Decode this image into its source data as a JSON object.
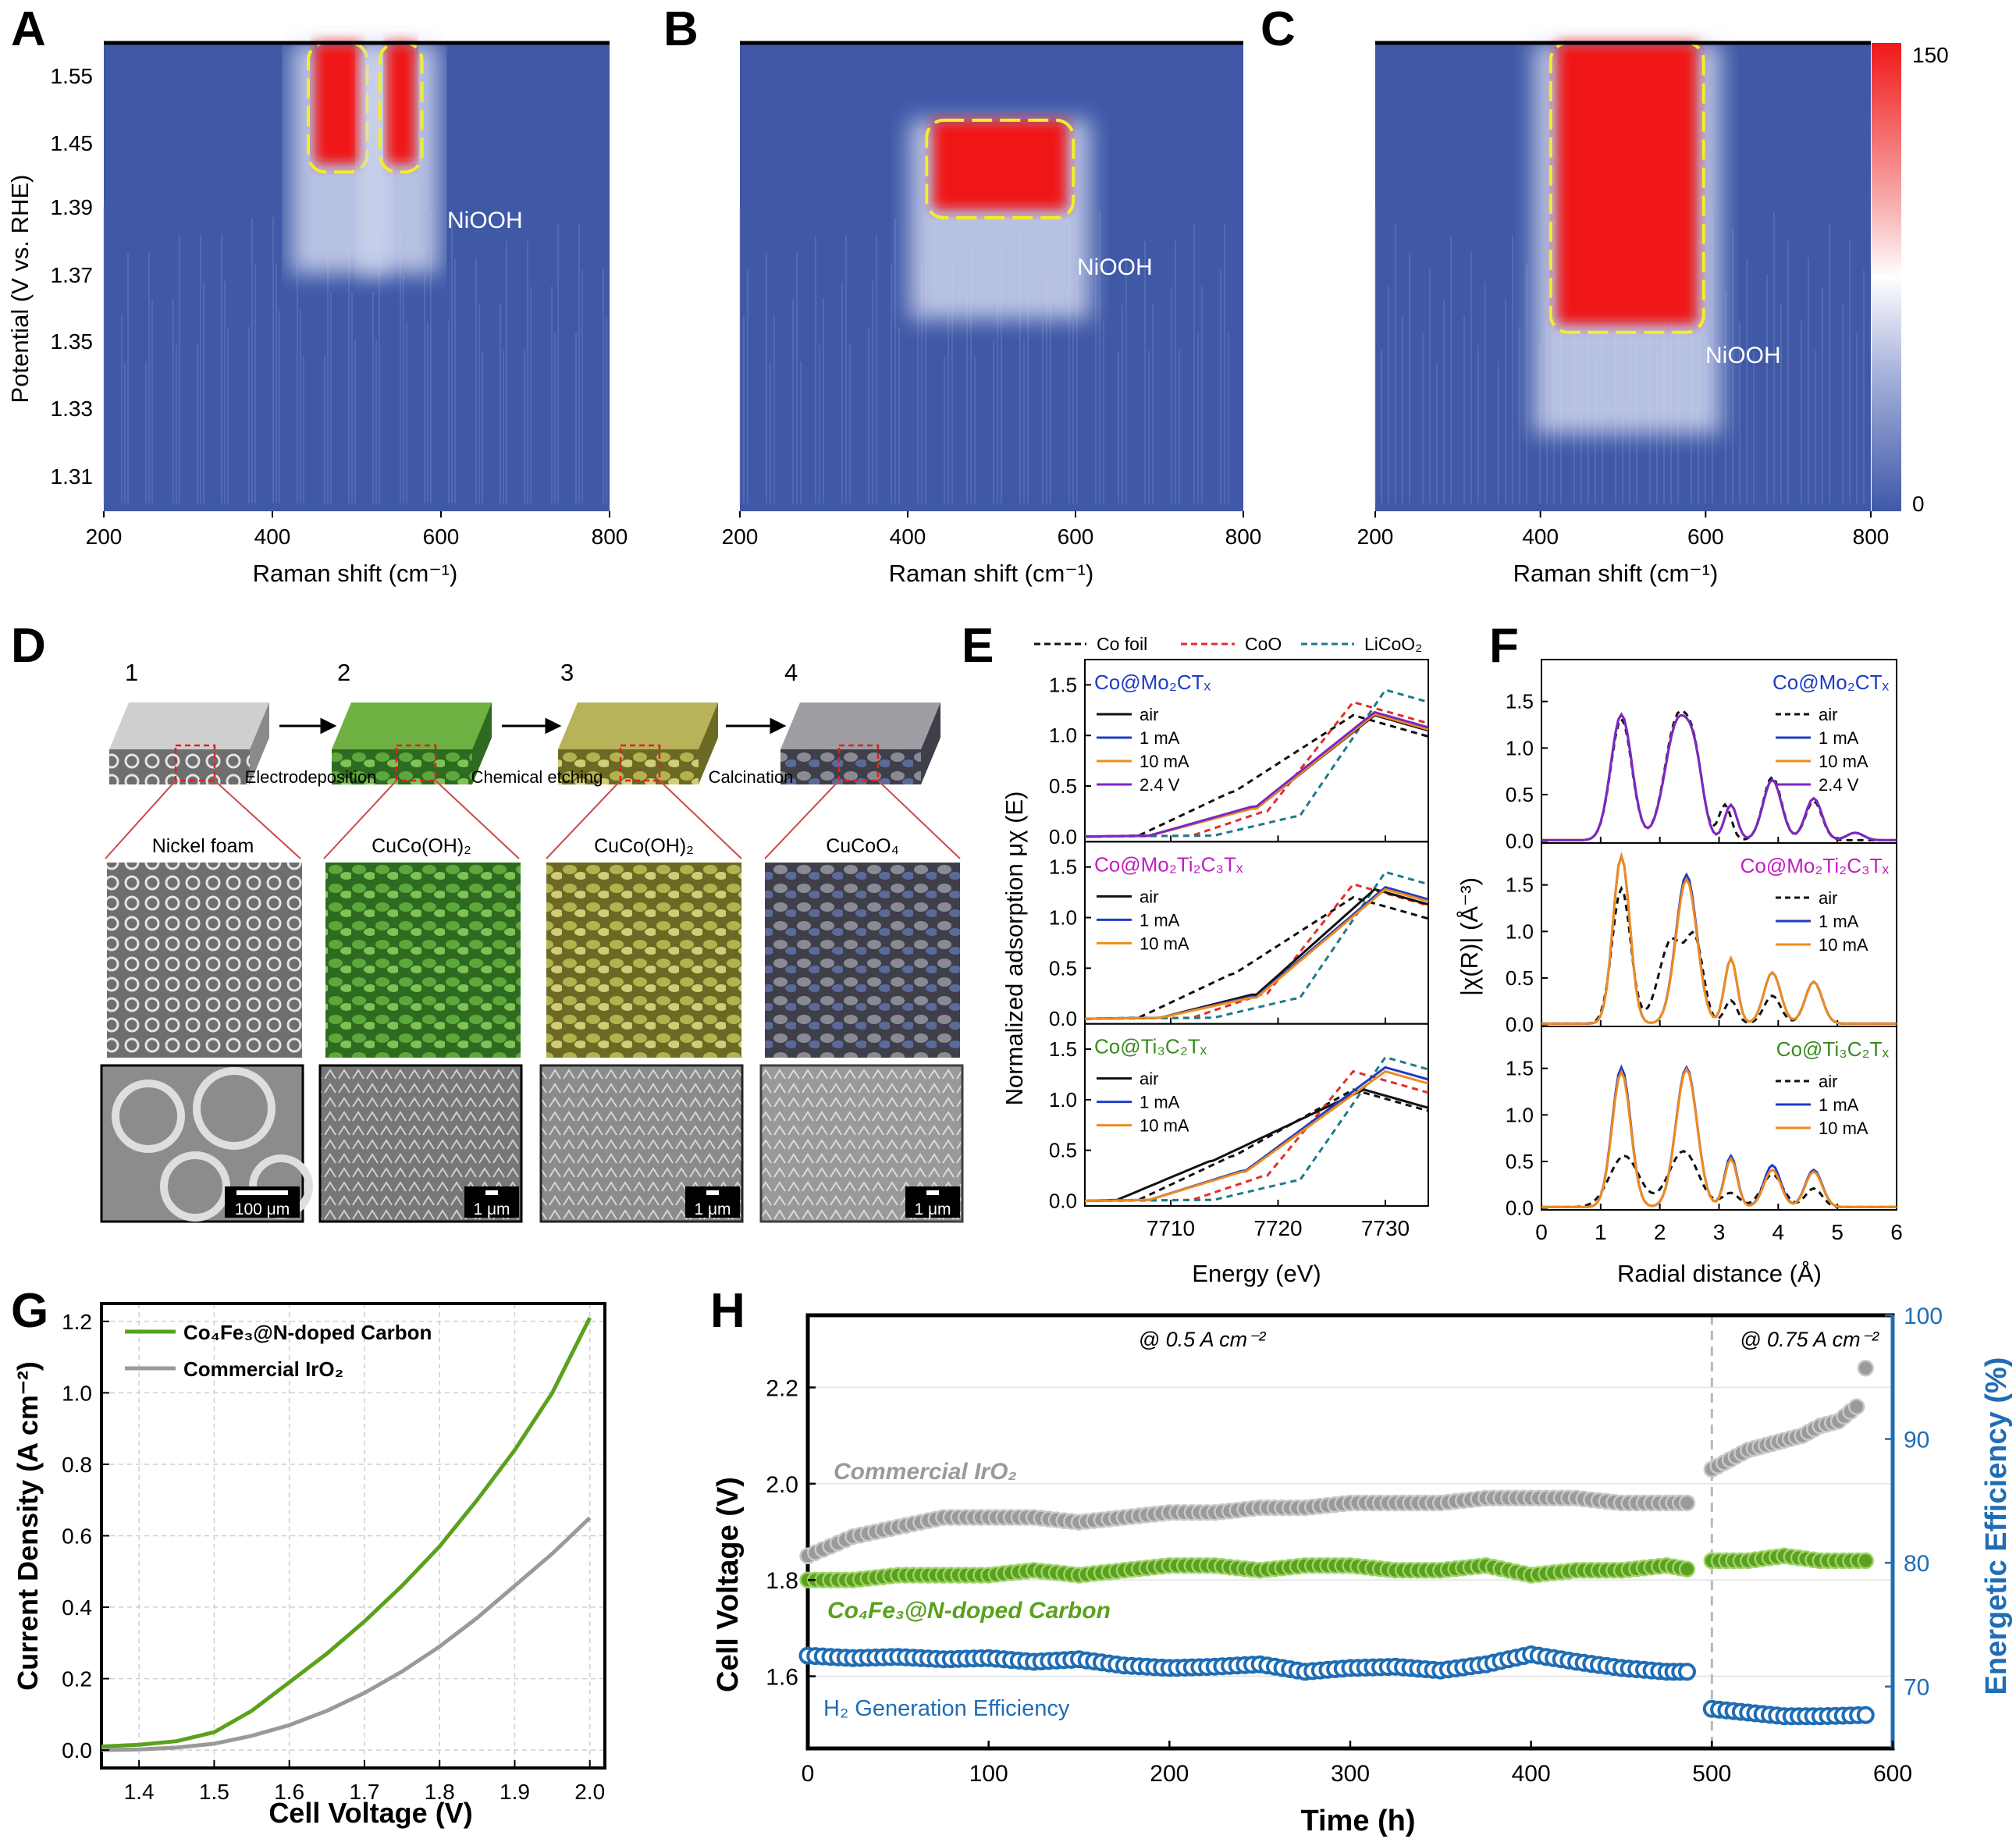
{
  "panels": {
    "A": {
      "label": "A",
      "xlabel": "Raman shift (cm⁻¹)",
      "ylabel": "Potential (V vs. RHE)",
      "annotation": "NiOOH",
      "xticks": [
        "200",
        "400",
        "600",
        "800"
      ],
      "yticks": [
        "1.31",
        "1.33",
        "1.35",
        "1.37",
        "1.39",
        "1.45",
        "1.55"
      ]
    },
    "B": {
      "label": "B",
      "xlabel": "Raman shift (cm⁻¹)",
      "annotation": "NiOOH",
      "xticks": [
        "200",
        "400",
        "600",
        "800"
      ]
    },
    "C": {
      "label": "C",
      "xlabel": "Raman shift (cm⁻¹)",
      "annotation": "NiOOH",
      "xticks": [
        "200",
        "400",
        "600",
        "800"
      ],
      "colorbar": {
        "max": "150",
        "min": "0"
      }
    },
    "D": {
      "label": "D",
      "steps": [
        "1",
        "2",
        "3",
        "4"
      ],
      "processes": [
        "Electrodeposition",
        "Chemical etching",
        "Calcination"
      ],
      "materials": [
        "Nickel foam",
        "CuCo(OH)₂",
        "CuCo(OH)₂",
        "CuCoO₄"
      ],
      "scalebars": [
        "100 μm",
        "1 μm",
        "1 μm",
        "1 μm"
      ]
    },
    "E": {
      "label": "E",
      "xlabel": "Energy (eV)",
      "ylabel": "Normalized adsorption μχ (E)",
      "refs": [
        "Co foil",
        "CoO",
        "LiCoO₂"
      ],
      "xticks": [
        "7710",
        "7720",
        "7730"
      ],
      "yticks": [
        "0.0",
        "0.5",
        "1.0",
        "1.5"
      ],
      "subplots": [
        {
          "title": "Co@Mo₂CTₓ",
          "legend": [
            "air",
            "1 mA",
            "10 mA",
            "2.4 V"
          ]
        },
        {
          "title": "Co@Mo₂Ti₂C₃Tₓ",
          "legend": [
            "air",
            "1 mA",
            "10 mA"
          ]
        },
        {
          "title": "Co@Ti₃C₂Tₓ",
          "legend": [
            "air",
            "1 mA",
            "10 mA"
          ]
        }
      ]
    },
    "F": {
      "label": "F",
      "xlabel": "Radial distance (Å)",
      "ylabel": "|χ(R)| (Å⁻³)",
      "xticks": [
        "0",
        "1",
        "2",
        "3",
        "4",
        "5",
        "6"
      ],
      "yticks": [
        "0.0",
        "0.5",
        "1.0",
        "1.5"
      ],
      "subplots": [
        {
          "title": "Co@Mo₂CTₓ",
          "legend": [
            "air",
            "1 mA",
            "10 mA",
            "2.4 V"
          ]
        },
        {
          "title": "Co@Mo₂Ti₂C₃Tₓ",
          "legend": [
            "air",
            "1 mA",
            "10 mA"
          ]
        },
        {
          "title": "Co@Ti₃C₂Tₓ",
          "legend": [
            "air",
            "1 mA",
            "10 mA"
          ]
        }
      ]
    },
    "G": {
      "label": "G",
      "xlabel": "Cell Voltage (V)",
      "ylabel": "Current Density (A cm⁻²)",
      "xticks": [
        "1.4",
        "1.5",
        "1.6",
        "1.7",
        "1.8",
        "1.9",
        "2.0"
      ],
      "yticks": [
        "0.0",
        "0.2",
        "0.4",
        "0.6",
        "0.8",
        "1.0",
        "1.2"
      ],
      "legend": [
        "Co₄Fe₃@N-doped Carbon",
        "Commercial IrO₂"
      ]
    },
    "H": {
      "label": "H",
      "xlabel": "Time (h)",
      "ylabel": "Cell Voltage (V)",
      "y2label": "Energetic Efficiency (%)",
      "xticks": [
        "0",
        "100",
        "200",
        "300",
        "400",
        "500",
        "600"
      ],
      "yticks": [
        "1.6",
        "1.8",
        "2.0",
        "2.2"
      ],
      "y2ticks": [
        "70",
        "80",
        "90",
        "100"
      ],
      "conditions": [
        "@ 0.5 A cm⁻²",
        "@ 0.75 A cm⁻²"
      ],
      "series_labels": [
        "Commercial IrO₂",
        "Co₄Fe₃@N-doped Carbon",
        "H₂ Generation Efficiency"
      ]
    }
  },
  "colors": {
    "green": "#5aa11e",
    "gray": "#9a9a9a",
    "blue": "#1f6db5",
    "heat_bg": "#3f59a7",
    "heat_hot": "#f01818",
    "highlight": "#f2ee2a",
    "black": "#111111",
    "navy": "#1f3cc4",
    "orange": "#ee8b1e",
    "purple": "#7a28c4",
    "red_dash": "#e0302a",
    "teal_dash": "#1d7a8a"
  },
  "chart_data": [
    {
      "panel": "A",
      "type": "heatmap",
      "x_range": [
        200,
        800
      ],
      "y_range": [
        1.3,
        1.56
      ],
      "xlabel": "Raman shift (cm⁻¹)",
      "ylabel": "Potential (V vs. RHE)",
      "hot_regions": [
        {
          "x": [
            450,
            505
          ],
          "y_from": 1.43
        },
        {
          "x": [
            535,
            570
          ],
          "y_from": 1.43
        }
      ],
      "color_range": [
        0,
        150
      ]
    },
    {
      "panel": "B",
      "type": "heatmap",
      "x_range": [
        200,
        800
      ],
      "y_range": [
        1.3,
        1.56
      ],
      "hot_regions": [
        {
          "x": [
            430,
            590
          ],
          "y_center": 1.42
        }
      ],
      "color_range": [
        0,
        150
      ]
    },
    {
      "panel": "C",
      "type": "heatmap",
      "x_range": [
        200,
        800
      ],
      "y_range": [
        1.3,
        1.56
      ],
      "hot_regions": [
        {
          "x": [
            420,
            590
          ],
          "y_from": 1.355
        }
      ],
      "color_range": [
        0,
        150
      ]
    },
    {
      "panel": "G",
      "type": "line",
      "xlim": [
        1.35,
        2.02
      ],
      "ylim": [
        -0.05,
        1.25
      ],
      "series": [
        {
          "name": "Co₄Fe₃@N-doped Carbon",
          "x": [
            1.35,
            1.4,
            1.45,
            1.5,
            1.55,
            1.6,
            1.65,
            1.7,
            1.75,
            1.8,
            1.85,
            1.9,
            1.95,
            2.0
          ],
          "values": [
            0.01,
            0.015,
            0.025,
            0.05,
            0.11,
            0.19,
            0.27,
            0.36,
            0.46,
            0.57,
            0.7,
            0.84,
            1.0,
            1.21
          ]
        },
        {
          "name": "Commercial IrO₂",
          "x": [
            1.35,
            1.4,
            1.45,
            1.5,
            1.55,
            1.6,
            1.65,
            1.7,
            1.75,
            1.8,
            1.85,
            1.9,
            1.95,
            2.0
          ],
          "values": [
            0.0,
            0.002,
            0.007,
            0.018,
            0.04,
            0.07,
            0.11,
            0.16,
            0.22,
            0.29,
            0.37,
            0.46,
            0.55,
            0.65
          ]
        }
      ]
    },
    {
      "panel": "H",
      "type": "scatter",
      "xlim": [
        0,
        600
      ],
      "ylim": [
        1.45,
        2.35
      ],
      "y2lim": [
        65,
        100
      ],
      "series": [
        {
          "name": "Commercial IrO₂",
          "axis": "left",
          "x": [
            0,
            25,
            50,
            75,
            100,
            125,
            150,
            175,
            200,
            225,
            250,
            275,
            300,
            325,
            350,
            375,
            400,
            425,
            450,
            475,
            490,
            500,
            510,
            520,
            530,
            540,
            550,
            560,
            570,
            580,
            585
          ],
          "values": [
            1.85,
            1.89,
            1.91,
            1.93,
            1.93,
            1.93,
            1.92,
            1.93,
            1.94,
            1.94,
            1.95,
            1.95,
            1.96,
            1.96,
            1.96,
            1.97,
            1.97,
            1.97,
            1.96,
            1.96,
            1.96,
            2.03,
            2.05,
            2.07,
            2.08,
            2.09,
            2.1,
            2.12,
            2.13,
            2.16,
            2.24
          ]
        },
        {
          "name": "Co₄Fe₃@N-doped Carbon",
          "axis": "left",
          "x": [
            0,
            25,
            50,
            75,
            100,
            125,
            150,
            175,
            200,
            225,
            250,
            275,
            300,
            325,
            350,
            375,
            400,
            425,
            450,
            475,
            490,
            500,
            520,
            540,
            560,
            585
          ],
          "values": [
            1.8,
            1.8,
            1.81,
            1.81,
            1.81,
            1.82,
            1.81,
            1.82,
            1.83,
            1.83,
            1.82,
            1.83,
            1.83,
            1.82,
            1.82,
            1.83,
            1.81,
            1.82,
            1.82,
            1.83,
            1.82,
            1.84,
            1.84,
            1.85,
            1.84,
            1.84
          ]
        },
        {
          "name": "H₂ Generation Efficiency",
          "axis": "right",
          "x": [
            0,
            25,
            50,
            75,
            100,
            125,
            150,
            175,
            200,
            225,
            250,
            275,
            300,
            325,
            350,
            375,
            400,
            425,
            450,
            475,
            490,
            500,
            520,
            540,
            560,
            585
          ],
          "values": [
            72.5,
            72.3,
            72.4,
            72.2,
            72.3,
            72.0,
            72.2,
            71.7,
            71.5,
            71.6,
            71.8,
            71.2,
            71.5,
            71.6,
            71.3,
            71.8,
            72.6,
            72.0,
            71.5,
            71.2,
            71.2,
            68.2,
            67.9,
            67.6,
            67.6,
            67.7
          ]
        }
      ]
    }
  ]
}
